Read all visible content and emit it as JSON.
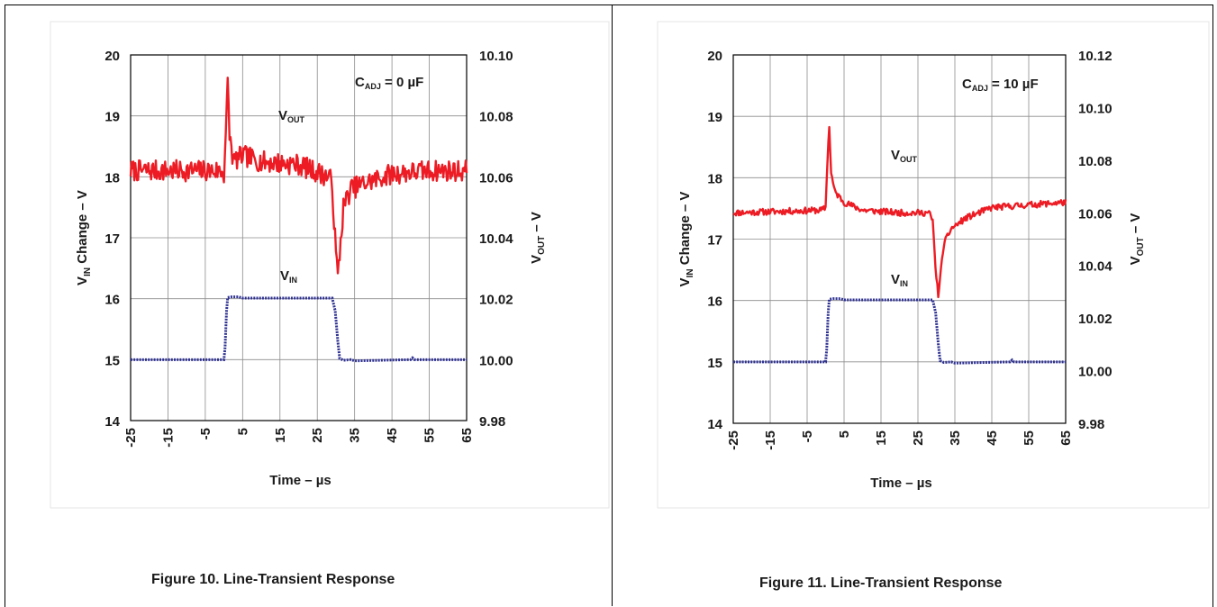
{
  "chart_data": [
    {
      "type": "line",
      "caption": "Figure 10. Line-Transient Response",
      "xlabel": "Time – µs",
      "ylabel_left": "VIN Change – V",
      "ylabel_right": "VOUT – V",
      "annotation": {
        "prefix": "C",
        "sub": "ADJ",
        "suffix": " = 0 µF"
      },
      "x_ticks": [
        -25,
        -15,
        -5,
        5,
        15,
        25,
        35,
        45,
        55,
        65
      ],
      "xlim": [
        -25,
        65
      ],
      "ylim_left": [
        14,
        20
      ],
      "y_ticks_left": [
        14,
        15,
        16,
        17,
        18,
        19,
        20
      ],
      "ylim_right": [
        9.98,
        10.1
      ],
      "y_ticks_right": [
        "9.98",
        "10.00",
        "10.02",
        "10.04",
        "10.06",
        "10.08",
        "10.10"
      ],
      "series": [
        {
          "name": "VIN",
          "axis": "left",
          "color": "#2e3192",
          "style": "dotted",
          "points": [
            [
              -25,
              15
            ],
            [
              0,
              15
            ],
            [
              0.3,
              15.2
            ],
            [
              0.7,
              15.8
            ],
            [
              1,
              16.02
            ],
            [
              2,
              16.03
            ],
            [
              4,
              16.03
            ],
            [
              5,
              16.01
            ],
            [
              29,
              16.01
            ],
            [
              29.8,
              15.8
            ],
            [
              30.5,
              15.3
            ],
            [
              31,
              15.02
            ],
            [
              32,
              14.99
            ],
            [
              34,
              15.0
            ],
            [
              35,
              14.98
            ],
            [
              50,
              15.0
            ],
            [
              50.5,
              15.03
            ],
            [
              51,
              15.0
            ],
            [
              65,
              15.0
            ]
          ]
        },
        {
          "name": "VOUT",
          "axis": "right",
          "color": "#ed1c24",
          "style": "noisy",
          "noise_amp": 0.0035,
          "noise_seed": 7,
          "step": 0.25,
          "points": [
            [
              -25,
              10.062
            ],
            [
              -1,
              10.062
            ],
            [
              0,
              10.061
            ],
            [
              0.5,
              10.075
            ],
            [
              1,
              10.09
            ],
            [
              1.5,
              10.074
            ],
            [
              2.5,
              10.065
            ],
            [
              5,
              10.067
            ],
            [
              10,
              10.065
            ],
            [
              20,
              10.064
            ],
            [
              28,
              10.06
            ],
            [
              29,
              10.058
            ],
            [
              29.5,
              10.045
            ],
            [
              30,
              10.035
            ],
            [
              30.5,
              10.027
            ],
            [
              31,
              10.035
            ],
            [
              32,
              10.05
            ],
            [
              34,
              10.056
            ],
            [
              38,
              10.058
            ],
            [
              45,
              10.061
            ],
            [
              55,
              10.062
            ],
            [
              65,
              10.062
            ]
          ]
        }
      ],
      "series_labels": {
        "VOUT": "V|OUT",
        "VIN": "V|IN"
      }
    },
    {
      "type": "line",
      "caption": "Figure 11. Line-Transient Response",
      "xlabel": "Time – µs",
      "ylabel_left": "VIN Change – V",
      "ylabel_right": "VOUT – V",
      "annotation": {
        "prefix": "C",
        "sub": "ADJ",
        "suffix": " = 10 µF"
      },
      "x_ticks": [
        -25,
        -15,
        -5,
        5,
        15,
        25,
        35,
        45,
        55,
        65
      ],
      "xlim": [
        -25,
        65
      ],
      "ylim_left": [
        14,
        20
      ],
      "y_ticks_left": [
        14,
        15,
        16,
        17,
        18,
        19,
        20
      ],
      "ylim_right": [
        9.98,
        10.12
      ],
      "y_ticks_right": [
        "9.98",
        "10.00",
        "10.02",
        "10.04",
        "10.06",
        "10.08",
        "10.10",
        "10.12"
      ],
      "series": [
        {
          "name": "VIN",
          "axis": "left",
          "color": "#2e3192",
          "style": "dotted",
          "points": [
            [
              -25,
              15
            ],
            [
              0,
              15
            ],
            [
              0.3,
              15.2
            ],
            [
              0.7,
              15.8
            ],
            [
              1,
              16.02
            ],
            [
              2,
              16.03
            ],
            [
              4,
              16.03
            ],
            [
              5,
              16.01
            ],
            [
              29,
              16.01
            ],
            [
              29.8,
              15.8
            ],
            [
              30.5,
              15.3
            ],
            [
              31,
              15.02
            ],
            [
              32,
              14.99
            ],
            [
              34,
              15.0
            ],
            [
              35,
              14.98
            ],
            [
              50,
              15.0
            ],
            [
              50.5,
              15.03
            ],
            [
              51,
              15.0
            ],
            [
              65,
              15.0
            ]
          ]
        },
        {
          "name": "VOUT",
          "axis": "right",
          "color": "#ed1c24",
          "style": "noisy",
          "noise_amp": 0.0012,
          "noise_seed": 11,
          "step": 0.25,
          "points": [
            [
              -25,
              10.06
            ],
            [
              -1,
              10.061
            ],
            [
              0,
              10.062
            ],
            [
              0.5,
              10.08
            ],
            [
              1,
              10.093
            ],
            [
              1.5,
              10.075
            ],
            [
              2.5,
              10.068
            ],
            [
              5,
              10.064
            ],
            [
              10,
              10.061
            ],
            [
              20,
              10.06
            ],
            [
              28,
              10.06
            ],
            [
              29,
              10.057
            ],
            [
              29.5,
              10.045
            ],
            [
              30,
              10.035
            ],
            [
              30.5,
              10.029
            ],
            [
              31,
              10.035
            ],
            [
              32,
              10.048
            ],
            [
              34,
              10.054
            ],
            [
              38,
              10.058
            ],
            [
              45,
              10.062
            ],
            [
              55,
              10.063
            ],
            [
              65,
              10.064
            ]
          ]
        }
      ],
      "series_labels": {
        "VOUT": "V|OUT",
        "VIN": "V|IN"
      }
    }
  ]
}
